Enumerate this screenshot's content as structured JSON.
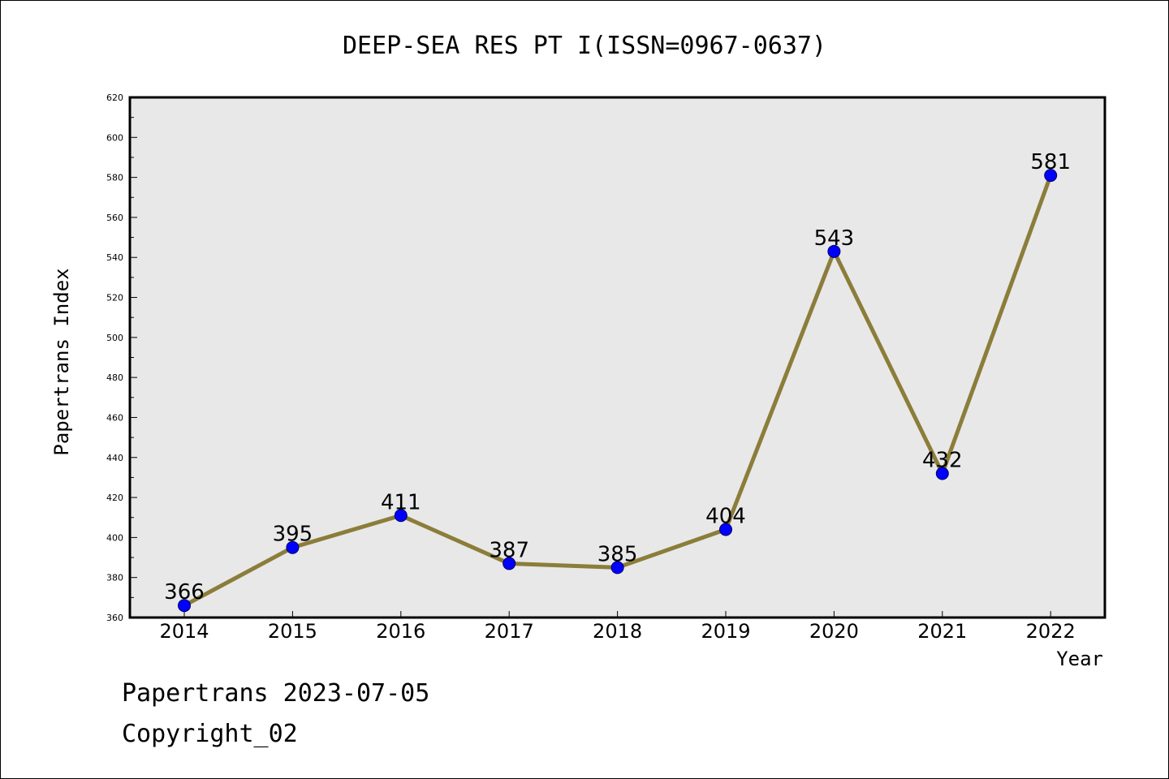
{
  "chart_data": {
    "type": "line",
    "title": "DEEP-SEA RES PT I(ISSN=0967-0637)",
    "xlabel": "Year",
    "ylabel": "Papertrans Index",
    "categories": [
      "2014",
      "2015",
      "2016",
      "2017",
      "2018",
      "2019",
      "2020",
      "2021",
      "2022"
    ],
    "series": [
      {
        "values": [
          366,
          395,
          411,
          387,
          385,
          404,
          543,
          432,
          581
        ],
        "data_labels": [
          "366",
          "395",
          "411",
          "387",
          "385",
          "404",
          "543",
          "432",
          "581"
        ]
      }
    ],
    "ylim": [
      360,
      620
    ],
    "yticks": [
      360,
      380,
      400,
      420,
      440,
      460,
      480,
      500,
      520,
      540,
      560,
      580,
      600,
      620
    ],
    "ytick_labels": [
      "360",
      "380",
      "400",
      "420",
      "440",
      "460",
      "480",
      "500",
      "520",
      "540",
      "560",
      "580",
      "600",
      "620"
    ],
    "grid": false,
    "colors": {
      "line": "#8b7d3a",
      "marker_fill": "#0000ff",
      "marker_edge": "#000066",
      "plot_background": "#e8e8e8"
    }
  },
  "footer": {
    "line1": "Papertrans 2023-07-05",
    "line2": "Copyright_02"
  }
}
